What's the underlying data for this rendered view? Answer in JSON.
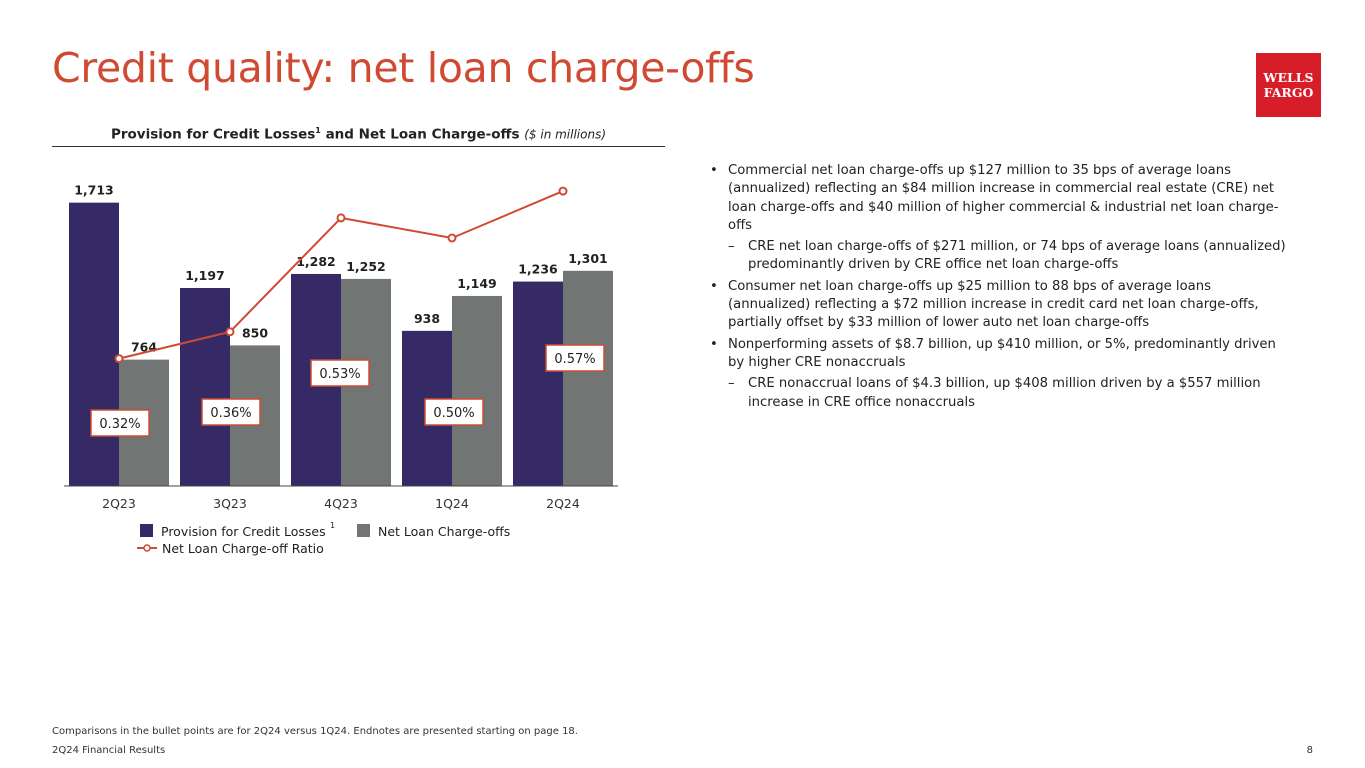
{
  "slide": {
    "title": "Credit quality: net loan charge-offs",
    "logo": {
      "line1": "WELLS",
      "line2": "FARGO"
    }
  },
  "chart_heading": {
    "main": "Provision for Credit Losses",
    "sup": "1",
    "rest": " and Net Loan Charge-offs",
    "units": "($ in millions)"
  },
  "colors": {
    "provision": "#352a66",
    "chargeoffs": "#717573",
    "ratio": "#d04a33",
    "title": "#d04a33",
    "logo": "#d71e28"
  },
  "chart_data": {
    "type": "bar",
    "categories": [
      "2Q23",
      "3Q23",
      "4Q23",
      "1Q24",
      "2Q24"
    ],
    "series": [
      {
        "name": "Provision for Credit Losses",
        "values": [
          1713,
          1197,
          1282,
          938,
          1236
        ],
        "labels": [
          "1,713",
          "1,197",
          "1,282",
          "938",
          "1,236"
        ]
      },
      {
        "name": "Net Loan Charge-offs",
        "values": [
          764,
          850,
          1252,
          1149,
          1301
        ],
        "labels": [
          "764",
          "850",
          "1,252",
          "1,149",
          "1,301"
        ]
      }
    ],
    "line_series": {
      "name": "Net Loan Charge-off Ratio",
      "values": [
        0.32,
        0.36,
        0.53,
        0.5,
        0.57
      ],
      "labels": [
        "0.32%",
        "0.36%",
        "0.53%",
        "0.50%",
        "0.57%"
      ]
    },
    "legend": {
      "items": [
        "Provision for Credit Losses",
        "Net Loan Charge-offs",
        "Net Loan Charge-off Ratio"
      ],
      "footnote_marker": "1",
      "placement": "bottom"
    },
    "ylim": [
      0,
      1850
    ],
    "grid": false
  },
  "bullets": [
    {
      "level": 1,
      "text": "Commercial net loan charge-offs up $127 million to 35 bps of average loans (annualized) reflecting an $84 million increase in commercial real estate (CRE) net loan charge-offs and $40 million of higher commercial & industrial net loan charge-offs"
    },
    {
      "level": 2,
      "text": "CRE net loan charge-offs of $271 million, or 74 bps of average loans (annualized) predominantly driven by CRE office net loan charge-offs"
    },
    {
      "level": 1,
      "text": "Consumer net loan charge-offs up $25 million to 88 bps of average loans (annualized) reflecting a $72 million increase in credit card net loan charge-offs, partially offset by $33 million of lower auto net loan charge-offs"
    },
    {
      "level": 1,
      "text": "Nonperforming assets of $8.7 billion, up $410 million, or 5%, predominantly driven by higher CRE nonaccruals"
    },
    {
      "level": 2,
      "text": "CRE nonaccrual loans of $4.3 billion, up $408 million driven by a $557 million increase in CRE office nonaccruals"
    }
  ],
  "footer": {
    "note": "Comparisons in the bullet points are for 2Q24 versus 1Q24. Endnotes are presented starting on page 18.",
    "left": "2Q24 Financial Results",
    "page": "8"
  }
}
